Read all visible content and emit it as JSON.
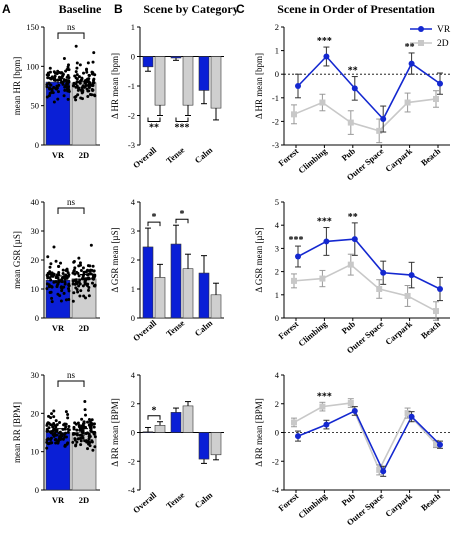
{
  "panels": {
    "A": {
      "letter": "A",
      "title": "Baseline"
    },
    "B": {
      "letter": "B",
      "title": "Scene by Category"
    },
    "C": {
      "letter": "C",
      "title": "Scene in Order of Presentation"
    }
  },
  "legend": {
    "vr": "VR",
    "twod": "2D"
  },
  "colors": {
    "vr": "#0a1fd6",
    "twod": "#cfcfcf",
    "vr_line": "#1428d0",
    "twod_line": "#c8c8c8"
  },
  "chart_data": [
    {
      "id": "A-HR",
      "type": "bar",
      "ylabel": "mean HR [bpm]",
      "categories": [
        "VR",
        "2D"
      ],
      "values": [
        80,
        79
      ],
      "errors": [
        2,
        2
      ],
      "ylim": [
        0,
        150
      ],
      "yticks": [
        0,
        50,
        100,
        150
      ],
      "annotation": "ns"
    },
    {
      "id": "A-GSR",
      "type": "bar",
      "ylabel": "mean GSR [µS]",
      "categories": [
        "VR",
        "2D"
      ],
      "values": [
        13,
        13.5
      ],
      "errors": [
        1.5,
        1.5
      ],
      "ylim": [
        0,
        40
      ],
      "yticks": [
        0,
        10,
        20,
        30,
        40
      ],
      "annotation": "ns"
    },
    {
      "id": "A-RR",
      "type": "bar",
      "ylabel": "mean RR [BPM]",
      "categories": [
        "VR",
        "2D"
      ],
      "values": [
        15,
        15
      ],
      "errors": [
        1,
        1
      ],
      "ylim": [
        0,
        30
      ],
      "yticks": [
        0,
        10,
        20,
        30
      ],
      "annotation": "ns"
    },
    {
      "id": "B-HR",
      "type": "bar",
      "ylabel": "Δ HR mean [bpm]",
      "categories": [
        "Overall",
        "Tense",
        "Calm"
      ],
      "series": [
        {
          "name": "VR",
          "values": [
            -0.35,
            -0.05,
            -1.15
          ],
          "errors": [
            0.15,
            0.08,
            0.45
          ]
        },
        {
          "name": "2D",
          "values": [
            -1.65,
            -1.65,
            -1.75
          ],
          "errors": [
            0.35,
            0.35,
            0.4
          ]
        }
      ],
      "ylim": [
        -3,
        1
      ],
      "yticks": [
        -3,
        -2,
        -1,
        0,
        1
      ],
      "annotations": [
        {
          "category": "Overall",
          "text": "**"
        },
        {
          "category": "Tense",
          "text": "***"
        }
      ]
    },
    {
      "id": "B-GSR",
      "type": "bar",
      "ylabel": "Δ GSR mean [µS]",
      "categories": [
        "Overall",
        "Tense",
        "Calm"
      ],
      "series": [
        {
          "name": "VR",
          "values": [
            2.45,
            2.55,
            1.55
          ],
          "errors": [
            0.65,
            0.65,
            0.6
          ]
        },
        {
          "name": "2D",
          "values": [
            1.4,
            1.7,
            0.8
          ],
          "errors": [
            0.45,
            0.5,
            0.4
          ]
        }
      ],
      "ylim": [
        0,
        4
      ],
      "yticks": [
        0,
        1,
        2,
        3,
        4
      ],
      "annotations": [
        {
          "category": "Overall",
          "text": "*"
        },
        {
          "category": "Tense",
          "text": "*"
        }
      ]
    },
    {
      "id": "B-RR",
      "type": "bar",
      "ylabel": "Δ RR mean [BPM]",
      "categories": [
        "Overall",
        "Tense",
        "Calm"
      ],
      "series": [
        {
          "name": "VR",
          "values": [
            0.05,
            1.4,
            -1.85
          ],
          "errors": [
            0.3,
            0.3,
            0.3
          ]
        },
        {
          "name": "2D",
          "values": [
            0.5,
            1.85,
            -1.55
          ],
          "errors": [
            0.25,
            0.3,
            0.35
          ]
        }
      ],
      "ylim": [
        -4,
        4
      ],
      "yticks": [
        -4,
        -2,
        0,
        2,
        4
      ],
      "annotations": [
        {
          "category": "Overall",
          "text": "*"
        }
      ]
    },
    {
      "id": "C-HR",
      "type": "line",
      "ylabel": "Δ HR mean [bpm]",
      "categories": [
        "Forest",
        "Climbing",
        "Pub",
        "Outer Space",
        "Carpark",
        "Beach"
      ],
      "series": [
        {
          "name": "VR",
          "values": [
            -0.5,
            0.75,
            -0.6,
            -1.9,
            0.45,
            -0.4
          ],
          "errors": [
            0.5,
            0.4,
            0.5,
            0.55,
            0.45,
            0.45
          ]
        },
        {
          "name": "2D",
          "values": [
            -1.7,
            -1.2,
            -2.05,
            -2.4,
            -1.2,
            -1.05
          ],
          "errors": [
            0.4,
            0.35,
            0.5,
            0.5,
            0.4,
            0.35
          ]
        }
      ],
      "ylim": [
        -3,
        2
      ],
      "yticks": [
        -3,
        -2,
        -1,
        0,
        1,
        2
      ],
      "annotations": [
        {
          "category": "Climbing",
          "text": "***"
        },
        {
          "category": "Pub",
          "text": "**"
        },
        {
          "category": "Carpark",
          "text": "**"
        }
      ]
    },
    {
      "id": "C-GSR",
      "type": "line",
      "ylabel": "Δ GSR mean [µS]",
      "categories": [
        "Forest",
        "Climbing",
        "Pub",
        "Outer Space",
        "Carpark",
        "Beach"
      ],
      "series": [
        {
          "name": "VR",
          "values": [
            2.65,
            3.3,
            3.4,
            1.95,
            1.85,
            1.25
          ],
          "errors": [
            0.45,
            0.6,
            0.7,
            0.5,
            0.55,
            0.5
          ]
        },
        {
          "name": "2D",
          "values": [
            1.6,
            1.7,
            2.3,
            1.25,
            0.95,
            0.3
          ],
          "errors": [
            0.3,
            0.35,
            0.45,
            0.4,
            0.45,
            0.4
          ]
        }
      ],
      "ylim": [
        0,
        5
      ],
      "yticks": [
        0,
        1,
        2,
        3,
        4,
        5
      ],
      "annotations": [
        {
          "category": "Forest",
          "text": "***"
        },
        {
          "category": "Climbing",
          "text": "***"
        },
        {
          "category": "Pub",
          "text": "**"
        }
      ]
    },
    {
      "id": "C-RR",
      "type": "line",
      "ylabel": "Δ RR mean [BPM]",
      "categories": [
        "Forest",
        "Climbing",
        "Pub",
        "Outer Space",
        "Carpark",
        "Beach"
      ],
      "series": [
        {
          "name": "VR",
          "values": [
            -0.25,
            0.55,
            1.5,
            -2.7,
            1.1,
            -0.85
          ],
          "errors": [
            0.35,
            0.3,
            0.3,
            0.35,
            0.35,
            0.25
          ]
        },
        {
          "name": "2D",
          "values": [
            0.7,
            1.8,
            2.05,
            -2.6,
            1.35,
            -0.8
          ],
          "errors": [
            0.3,
            0.3,
            0.3,
            0.35,
            0.35,
            0.25
          ]
        }
      ],
      "ylim": [
        -4,
        4
      ],
      "yticks": [
        -4,
        -2,
        0,
        2,
        4
      ],
      "annotations": [
        {
          "category": "Climbing",
          "text": "***"
        }
      ]
    }
  ]
}
